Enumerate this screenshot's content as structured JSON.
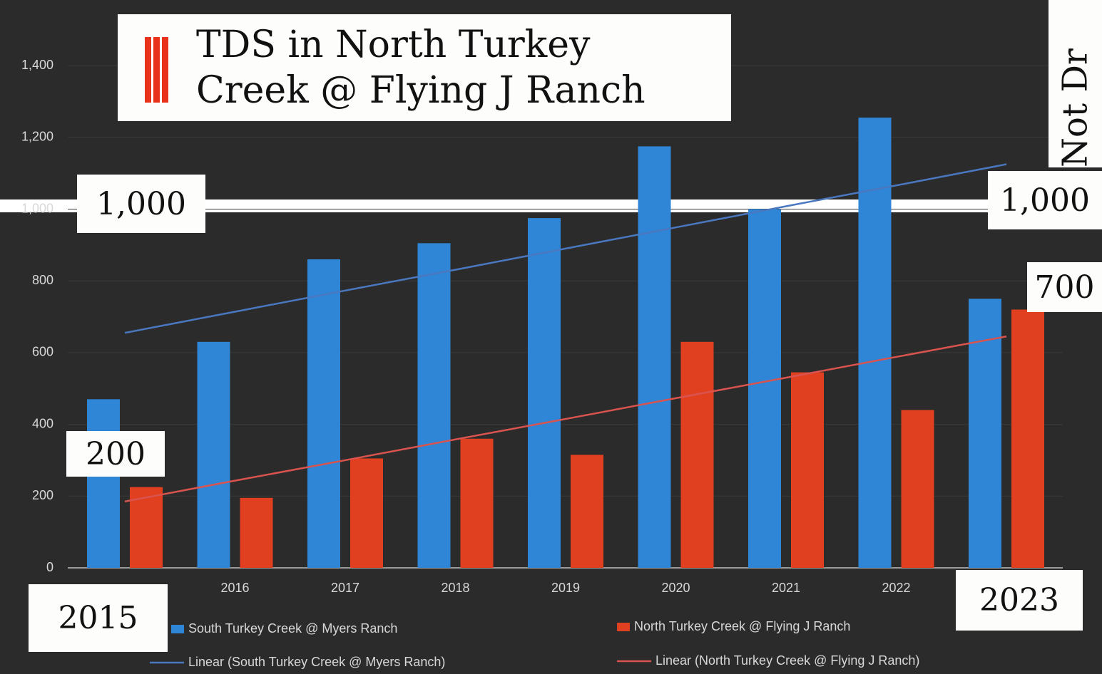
{
  "chart_data": {
    "type": "bar",
    "title": "TDS in North Turkey Creek @ Flying J Ranch",
    "categories": [
      "2015",
      "2016",
      "2017",
      "2018",
      "2019",
      "2020",
      "2021",
      "2022",
      "2023"
    ],
    "series": [
      {
        "name": "South Turkey Creek @ Myers Ranch",
        "type": "bar",
        "color": "#2f86d6",
        "values": [
          470,
          630,
          860,
          905,
          975,
          1175,
          1000,
          1255,
          750
        ]
      },
      {
        "name": "North Turkey Creek @ Flying J Ranch",
        "type": "bar",
        "color": "#e0401f",
        "values": [
          225,
          195,
          305,
          360,
          315,
          630,
          545,
          440,
          720
        ]
      },
      {
        "name": "Linear (South Turkey Creek @ Myers Ranch)",
        "type": "line",
        "color": "#4a78c0",
        "values": [
          655,
          714,
          773,
          831,
          890,
          949,
          1008,
          1066,
          1125
        ]
      },
      {
        "name": "Linear (North Turkey Creek @ Flying J Ranch)",
        "type": "line",
        "color": "#d9534f",
        "values": [
          185,
          243,
          300,
          358,
          415,
          473,
          530,
          588,
          645
        ]
      }
    ],
    "ylim": [
      0,
      1500
    ],
    "yticks": [
      0,
      200,
      400,
      600,
      800,
      {
        "value": 1000,
        "label": "1,000"
      },
      {
        "value": 1200,
        "label": "1,200"
      },
      {
        "value": 1400,
        "label": "1,400"
      }
    ],
    "grid": true,
    "annotations": [
      "1,000",
      "1,000",
      "200",
      "700",
      "Not Dr"
    ]
  }
}
